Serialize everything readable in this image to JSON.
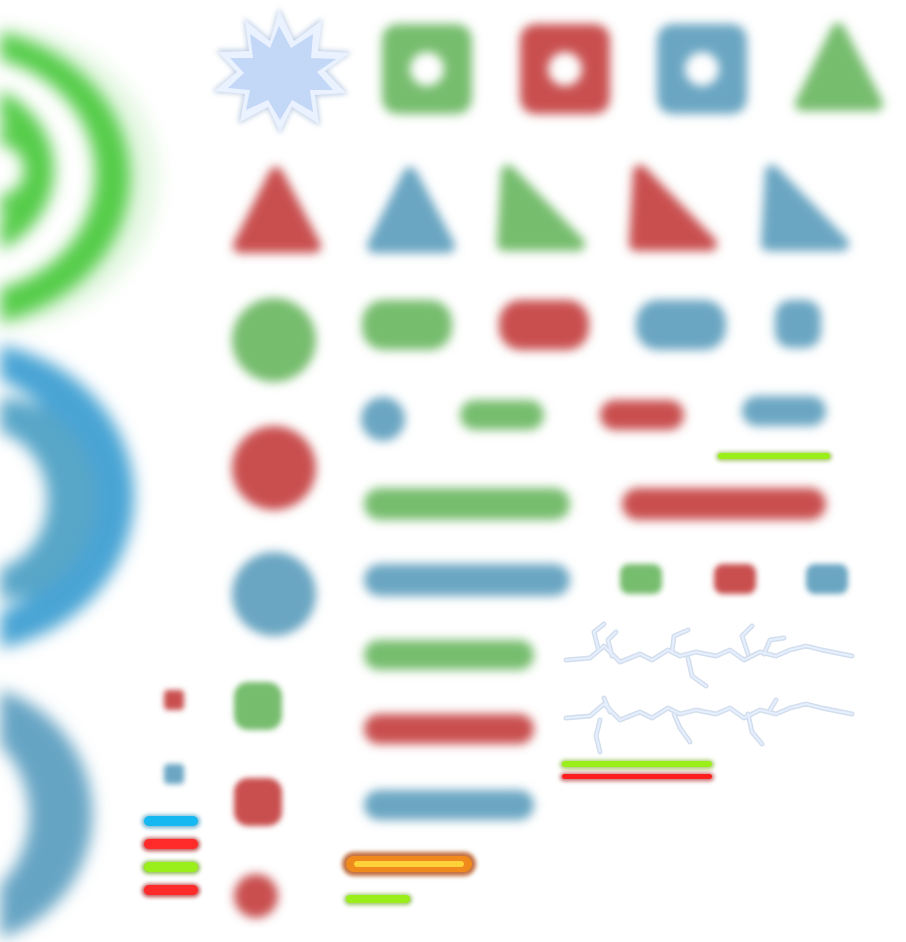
{
  "sheet": {
    "colors": {
      "green": "#77bd6e",
      "red": "#c9504f",
      "blue": "#6aa6c2",
      "bright_green": "#4fcf45",
      "bright_blue": "#4aa5d8",
      "lime": "#9aee19",
      "neon_red": "#ff1e1e",
      "cyan": "#15b8f0",
      "orange": "#f59c24",
      "star_fill": "#c2d7f6",
      "star_edge": "#eaf1ff",
      "lightning": "#dde8f6"
    },
    "sprites": [
      {
        "name": "ring-sprite-green",
        "icon": "concentric-rings",
        "color": "green"
      },
      {
        "name": "ring-sprite-blue",
        "icon": "concentric-rings",
        "color": "blue"
      },
      {
        "name": "ring-sprite-blue-small",
        "icon": "concentric-rings",
        "color": "blue"
      },
      {
        "name": "star-burst-sprite",
        "icon": "spiky-star",
        "color": "star_fill"
      },
      {
        "name": "hollow-square-sprites",
        "icon": "rounded-square-with-hole",
        "colors": [
          "green",
          "red",
          "blue"
        ]
      },
      {
        "name": "triangle-sprites",
        "icon": "rounded-triangle",
        "colors": [
          "green",
          "red",
          "blue",
          "green",
          "red",
          "blue"
        ]
      },
      {
        "name": "circle-sprites",
        "icon": "blurred-circle",
        "colors": [
          "green",
          "red",
          "blue",
          "blue",
          "red"
        ]
      },
      {
        "name": "capsule-sprites",
        "icon": "rounded-capsule",
        "colors": [
          "green",
          "red",
          "blue",
          "green",
          "red",
          "blue"
        ]
      },
      {
        "name": "long-bar-sprites",
        "icon": "long-rounded-bar",
        "colors": [
          "green",
          "red",
          "blue",
          "green",
          "red",
          "blue"
        ]
      },
      {
        "name": "small-square-sprites",
        "icon": "small-rounded-square",
        "colors": [
          "green",
          "red",
          "blue",
          "red",
          "blue",
          "green"
        ]
      },
      {
        "name": "lightning-sprites",
        "icon": "lightning-bolt",
        "color": "lightning"
      },
      {
        "name": "glow-bar-sprites",
        "icon": "neon-glow-bar",
        "colors": [
          "lime",
          "neon_red",
          "cyan",
          "orange"
        ]
      }
    ]
  }
}
